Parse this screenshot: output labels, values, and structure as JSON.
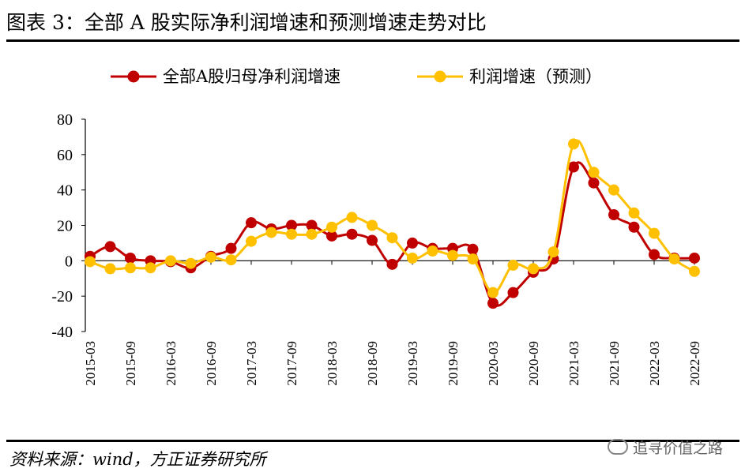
{
  "title": "图表 3：全部 A 股实际净利润增速和预测增速走势对比",
  "source": "资料来源：wind，方正证券研究所",
  "watermark": "追寻价值之路",
  "chart_data": {
    "type": "line",
    "categories": [
      "2015-03",
      "2015-06",
      "2015-09",
      "2015-12",
      "2016-03",
      "2016-06",
      "2016-09",
      "2016-12",
      "2017-03",
      "2017-06",
      "2017-09",
      "2017-12",
      "2018-03",
      "2018-06",
      "2018-09",
      "2018-12",
      "2019-03",
      "2019-06",
      "2019-09",
      "2019-12",
      "2020-03",
      "2020-06",
      "2020-09",
      "2020-12",
      "2021-03",
      "2021-06",
      "2021-09",
      "2021-12",
      "2022-03",
      "2022-06",
      "2022-09"
    ],
    "x_tick_labels": [
      "2015-03",
      "2015-09",
      "2016-03",
      "2016-09",
      "2017-03",
      "2017-09",
      "2018-03",
      "2018-09",
      "2019-03",
      "2019-09",
      "2020-03",
      "2020-09",
      "2021-03",
      "2021-09",
      "2022-03",
      "2022-09"
    ],
    "series": [
      {
        "name": "全部A股归母净利润增速",
        "color": "#C00000",
        "values": [
          2.5,
          8,
          1.5,
          0,
          -0.5,
          -4,
          2.5,
          7,
          21.5,
          18,
          20,
          20,
          14,
          15,
          11.5,
          -2,
          10,
          7,
          7,
          6.5,
          -24,
          -18,
          -6.5,
          1,
          53,
          44,
          26,
          19,
          3.5,
          1.5,
          1.5
        ]
      },
      {
        "name": "利润增速（预测）",
        "color": "#FFC000",
        "values": [
          -0.5,
          -4.5,
          -4,
          -4,
          0,
          -1.5,
          2,
          0.5,
          11,
          16,
          15,
          15,
          19,
          24.5,
          20,
          13,
          1.5,
          5.5,
          3,
          1,
          -18,
          -2.5,
          -4.5,
          5,
          66,
          50,
          40,
          27,
          15.5,
          1,
          -6
        ]
      }
    ],
    "ylim": [
      -40,
      80
    ],
    "yticks": [
      -40,
      -20,
      0,
      20,
      40,
      60,
      80
    ],
    "legend_position": "top",
    "grid": false
  }
}
